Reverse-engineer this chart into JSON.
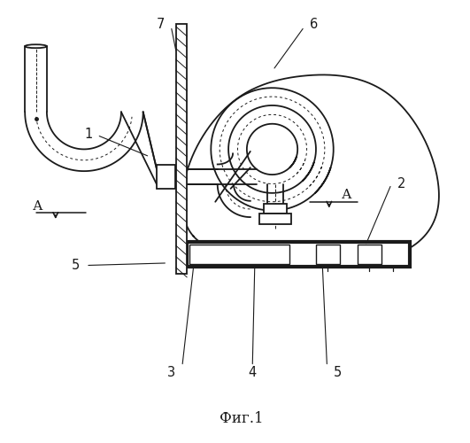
{
  "title": "Фиг.1",
  "title_fontsize": 12,
  "background_color": "#ffffff",
  "line_color": "#1a1a1a",
  "figsize": [
    5.31,
    5.0
  ],
  "dpi": 100
}
